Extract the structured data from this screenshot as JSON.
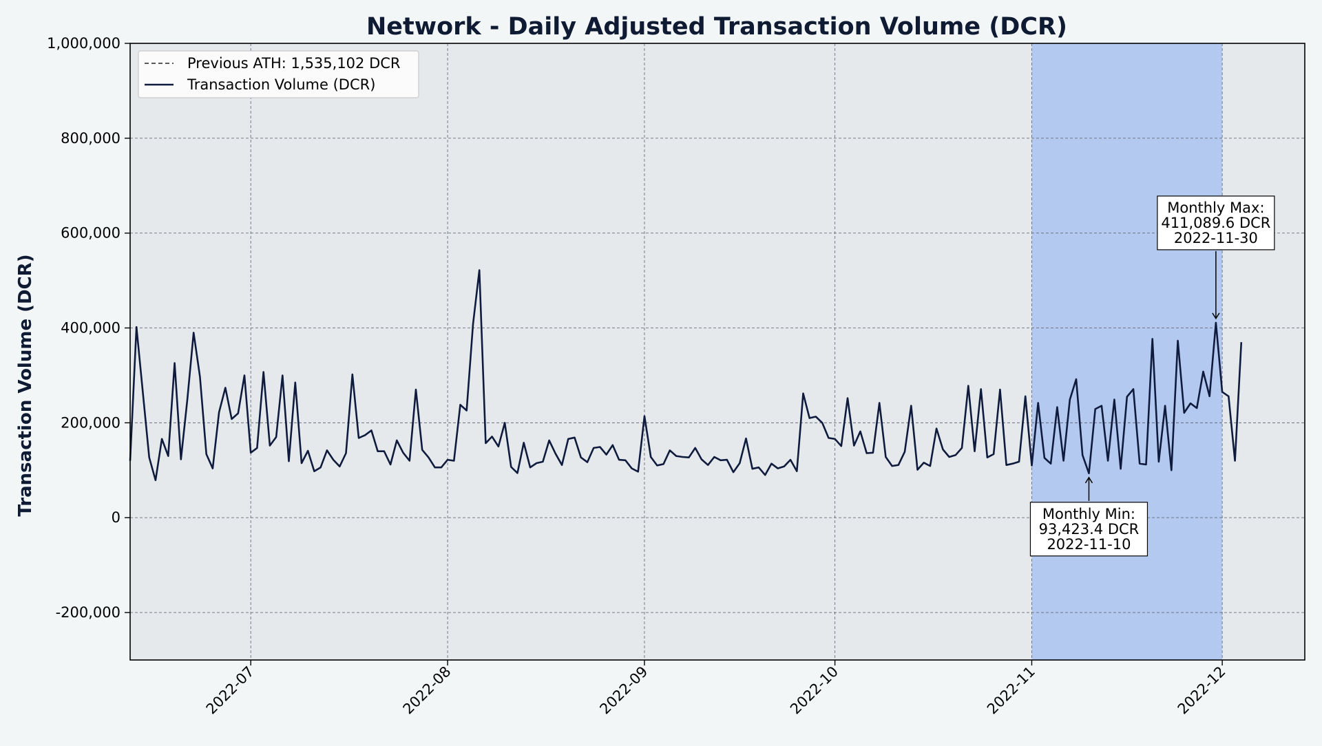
{
  "chart_data": {
    "type": "line",
    "title": "Network - Daily Adjusted Transaction Volume (DCR)",
    "xlabel": "",
    "ylabel": "Transaction Volume (DCR)",
    "xlim": [
      "2022-06-12",
      "2022-12-14"
    ],
    "ylim": [
      -300000,
      1000000
    ],
    "y_ticks": [
      -200000,
      0,
      200000,
      400000,
      600000,
      800000,
      1000000
    ],
    "y_tick_labels": [
      "-200,000",
      "0",
      "200,000",
      "400,000",
      "600,000",
      "800,000",
      "1,000,000"
    ],
    "x_ticks": [
      "2022-07-01",
      "2022-08-01",
      "2022-09-01",
      "2022-10-01",
      "2022-11-01",
      "2022-12-01"
    ],
    "x_tick_labels": [
      "2022-07",
      "2022-08",
      "2022-09",
      "2022-10",
      "2022-11",
      "2022-12"
    ],
    "grid": true,
    "legend_position": "top-left",
    "legend": [
      {
        "label": "Previous ATH: 1,535,102 DCR",
        "style": "dashed"
      },
      {
        "label": "Transaction Volume (DCR)",
        "style": "solid"
      }
    ],
    "highlight_span": {
      "start": "2022-11-01",
      "end": "2022-12-01"
    },
    "previous_ath": 1535102,
    "series": [
      {
        "name": "Transaction Volume (DCR)",
        "start_date": "2022-06-12",
        "values": [
          120000,
          402000,
          265000,
          127000,
          79000,
          166000,
          130000,
          326000,
          123000,
          248000,
          390000,
          297000,
          134000,
          104000,
          222000,
          274000,
          208000,
          220000,
          300000,
          137000,
          147000,
          307000,
          152000,
          170000,
          300000,
          119000,
          285000,
          115000,
          141000,
          98000,
          106000,
          142000,
          122000,
          108000,
          136000,
          302000,
          168000,
          174000,
          184000,
          140000,
          140000,
          112000,
          163000,
          137000,
          120000,
          270000,
          143000,
          127000,
          106000,
          106000,
          122000,
          120000,
          238000,
          226000,
          408000,
          522000,
          157000,
          171000,
          150000,
          200000,
          107000,
          94000,
          158000,
          106000,
          115000,
          118000,
          163000,
          135000,
          111000,
          166000,
          169000,
          127000,
          117000,
          147000,
          149000,
          133000,
          153000,
          122000,
          121000,
          104000,
          97000,
          214000,
          128000,
          110000,
          113000,
          142000,
          130000,
          128000,
          127000,
          147000,
          123000,
          111000,
          128000,
          121000,
          122000,
          96000,
          115000,
          167000,
          103000,
          106000,
          90000,
          114000,
          104000,
          108000,
          122000,
          98000,
          262000,
          210000,
          213000,
          200000,
          168000,
          166000,
          151000,
          252000,
          152000,
          182000,
          136000,
          137000,
          242000,
          128000,
          109000,
          111000,
          139000,
          236000,
          101000,
          116000,
          109000,
          188000,
          144000,
          128000,
          132000,
          147000,
          278000,
          140000,
          271000,
          127000,
          134000,
          270000,
          111000,
          114000,
          118000,
          256000,
          110000,
          242000,
          126000,
          114000,
          233000,
          120000,
          249000,
          292000,
          132000,
          93423.4,
          229000,
          236000,
          120000,
          249000,
          103000,
          255000,
          271000,
          114000,
          112000,
          377000,
          118000,
          236000,
          100000,
          373000,
          221000,
          241000,
          231000,
          308000,
          256000,
          411089.6,
          265000,
          256000,
          120000,
          370000
        ]
      }
    ],
    "annotations": [
      {
        "id": "max",
        "lines": [
          "Monthly Max:",
          "411,089.6 DCR",
          "2022-11-30"
        ],
        "date": "2022-11-30",
        "value": 411089.6,
        "placement": "above"
      },
      {
        "id": "min",
        "lines": [
          "Monthly Min:",
          "93,423.4 DCR",
          "2022-11-10"
        ],
        "date": "2022-11-10",
        "value": 93423.4,
        "placement": "below"
      }
    ],
    "colors": {
      "background": "#f3f6f7",
      "plot_background": "#e6e9ec",
      "line": "#0f1b3d",
      "highlight": "#b4c9f0",
      "grid": "#555a66",
      "title": "#0f1b33"
    }
  }
}
